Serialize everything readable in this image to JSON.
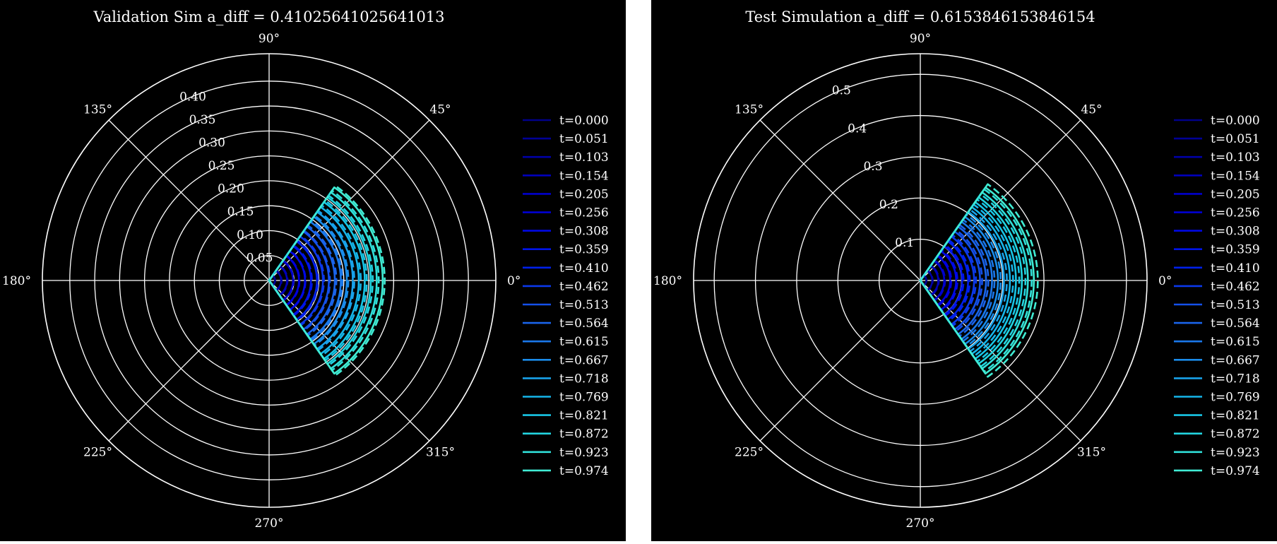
{
  "chart_data": [
    {
      "type": "polar-line",
      "title": "Validation Sim a_diff = 0.41025641025641013",
      "theta_tick_labels": [
        "0°",
        "45°",
        "90°",
        "135°",
        "180°",
        "225°",
        "270°",
        "315°"
      ],
      "theta_ticks_deg": [
        0,
        45,
        90,
        135,
        180,
        225,
        270,
        315
      ],
      "r_ticks": [
        0.05,
        0.1,
        0.15,
        0.2,
        0.25,
        0.3,
        0.35,
        0.4
      ],
      "r_tick_labels": [
        "0.05",
        "0.10",
        "0.15",
        "0.20",
        "0.25",
        "0.30",
        "0.35",
        "0.40"
      ],
      "r_max": 0.455,
      "theta_range_deg": [
        -55,
        55
      ],
      "legend_position": "right",
      "series_labels": [
        "t=0.000",
        "t=0.051",
        "t=0.103",
        "t=0.154",
        "t=0.205",
        "t=0.256",
        "t=0.308",
        "t=0.359",
        "t=0.410",
        "t=0.462",
        "t=0.513",
        "t=0.564",
        "t=0.615",
        "t=0.667",
        "t=0.718",
        "t=0.769",
        "t=0.821",
        "t=0.872",
        "t=0.923",
        "t=0.974"
      ],
      "solid_radii": [
        0.0,
        0.012,
        0.024,
        0.036,
        0.048,
        0.06,
        0.072,
        0.084,
        0.096,
        0.108,
        0.12,
        0.132,
        0.144,
        0.156,
        0.168,
        0.18,
        0.192,
        0.204,
        0.216,
        0.228
      ],
      "dashed_radii": [
        0.0,
        0.012,
        0.025,
        0.037,
        0.049,
        0.061,
        0.073,
        0.086,
        0.098,
        0.11,
        0.122,
        0.135,
        0.147,
        0.159,
        0.171,
        0.184,
        0.196,
        0.208,
        0.22,
        0.232
      ],
      "colors": [
        "#00008b",
        "#000096",
        "#0000a8",
        "#0000bb",
        "#0000cc",
        "#0000dd",
        "#0008e6",
        "#0014e8",
        "#0020ea",
        "#0b38ea",
        "#1450ea",
        "#1a64ea",
        "#1a78ea",
        "#1a8cea",
        "#18a2ea",
        "#16b6ea",
        "#18c6e6",
        "#22d4e0",
        "#30e0da",
        "#40ecd4"
      ]
    },
    {
      "type": "polar-line",
      "title": "Test Simulation a_diff = 0.6153846153846154",
      "theta_tick_labels": [
        "0°",
        "45°",
        "90°",
        "135°",
        "180°",
        "225°",
        "270°",
        "315°"
      ],
      "theta_ticks_deg": [
        0,
        45,
        90,
        135,
        180,
        225,
        270,
        315
      ],
      "r_ticks": [
        0.1,
        0.2,
        0.3,
        0.4,
        0.5
      ],
      "r_tick_labels": [
        "0.1",
        "0.2",
        "0.3",
        "0.4",
        "0.5"
      ],
      "r_max": 0.55,
      "theta_range_deg": [
        -55,
        55
      ],
      "legend_position": "right",
      "series_labels": [
        "t=0.000",
        "t=0.051",
        "t=0.103",
        "t=0.154",
        "t=0.205",
        "t=0.256",
        "t=0.308",
        "t=0.359",
        "t=0.410",
        "t=0.462",
        "t=0.513",
        "t=0.564",
        "t=0.615",
        "t=0.667",
        "t=0.718",
        "t=0.769",
        "t=0.821",
        "t=0.872",
        "t=0.923",
        "t=0.974"
      ],
      "solid_radii": [
        0.0,
        0.0145,
        0.029,
        0.0435,
        0.058,
        0.0725,
        0.087,
        0.1015,
        0.116,
        0.1305,
        0.145,
        0.1595,
        0.174,
        0.1885,
        0.203,
        0.2175,
        0.232,
        0.2465,
        0.261,
        0.2755
      ],
      "dashed_radii": [
        0.0,
        0.015,
        0.03,
        0.045,
        0.06,
        0.075,
        0.09,
        0.105,
        0.12,
        0.135,
        0.15,
        0.165,
        0.18,
        0.195,
        0.21,
        0.225,
        0.24,
        0.255,
        0.27,
        0.285
      ],
      "colors": [
        "#00008b",
        "#000096",
        "#0000a8",
        "#0000bb",
        "#0000cc",
        "#0000dd",
        "#0008e6",
        "#0014e8",
        "#0020ea",
        "#0b38ea",
        "#1450ea",
        "#1a64ea",
        "#1a78ea",
        "#1a8cea",
        "#18a2ea",
        "#16b6ea",
        "#18c6e6",
        "#22d4e0",
        "#30e0da",
        "#40ecd4"
      ]
    }
  ]
}
